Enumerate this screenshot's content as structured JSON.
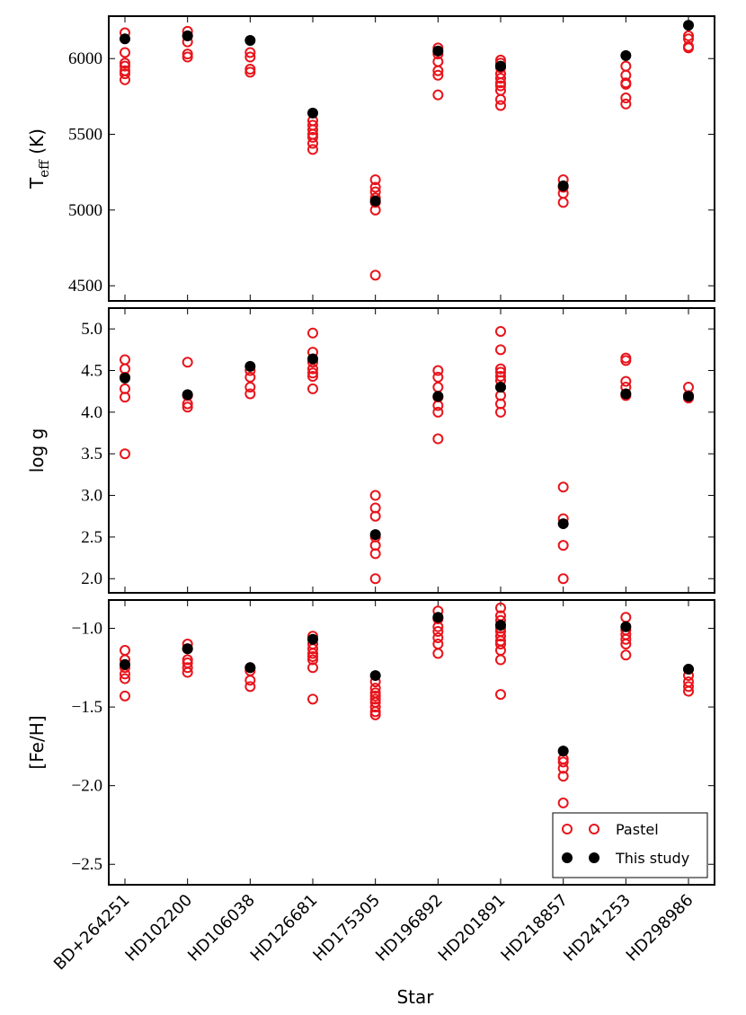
{
  "chart_data": {
    "type": "scatter",
    "categories": [
      "BD+264251",
      "HD102200",
      "HD106038",
      "HD126681",
      "HD175305",
      "HD196892",
      "HD201891",
      "HD218857",
      "HD241253",
      "HD298986"
    ],
    "xlabel": "Star",
    "legend": {
      "position": "bottom-right",
      "entries": [
        {
          "name": "Pastel",
          "marker": "open-circle",
          "color": "#e8141b"
        },
        {
          "name": "This study",
          "marker": "filled-circle",
          "color": "#000000"
        }
      ]
    },
    "panels": [
      {
        "id": "teff",
        "ylabel_main": "T",
        "ylabel_sub": "eff",
        "ylabel_unit": " (K)",
        "ylim": [
          4400,
          6280
        ],
        "yticks": [
          4500,
          5000,
          5500,
          6000
        ],
        "ytick_labels": [
          "4500",
          "5000",
          "5500",
          "6000"
        ],
        "series": [
          {
            "name": "Pastel",
            "points": [
              [
                0,
                6170
              ],
              [
                0,
                6040
              ],
              [
                0,
                5970
              ],
              [
                0,
                5950
              ],
              [
                0,
                5920
              ],
              [
                0,
                5900
              ],
              [
                0,
                5860
              ],
              [
                1,
                6180
              ],
              [
                1,
                6150
              ],
              [
                1,
                6110
              ],
              [
                1,
                6030
              ],
              [
                1,
                6010
              ],
              [
                2,
                6040
              ],
              [
                2,
                6010
              ],
              [
                2,
                5930
              ],
              [
                2,
                5910
              ],
              [
                3,
                5590
              ],
              [
                3,
                5560
              ],
              [
                3,
                5530
              ],
              [
                3,
                5500
              ],
              [
                3,
                5480
              ],
              [
                3,
                5440
              ],
              [
                3,
                5400
              ],
              [
                4,
                5200
              ],
              [
                4,
                5150
              ],
              [
                4,
                5120
              ],
              [
                4,
                5080
              ],
              [
                4,
                5050
              ],
              [
                4,
                5000
              ],
              [
                4,
                4570
              ],
              [
                5,
                6070
              ],
              [
                5,
                6030
              ],
              [
                5,
                5980
              ],
              [
                5,
                5920
              ],
              [
                5,
                5890
              ],
              [
                5,
                5760
              ],
              [
                6,
                5990
              ],
              [
                6,
                5970
              ],
              [
                6,
                5940
              ],
              [
                6,
                5900
              ],
              [
                6,
                5870
              ],
              [
                6,
                5840
              ],
              [
                6,
                5820
              ],
              [
                6,
                5790
              ],
              [
                6,
                5730
              ],
              [
                6,
                5690
              ],
              [
                7,
                5200
              ],
              [
                7,
                5150
              ],
              [
                7,
                5110
              ],
              [
                7,
                5050
              ],
              [
                8,
                5950
              ],
              [
                8,
                5890
              ],
              [
                8,
                5840
              ],
              [
                8,
                5830
              ],
              [
                8,
                5740
              ],
              [
                8,
                5700
              ],
              [
                9,
                6150
              ],
              [
                9,
                6130
              ],
              [
                9,
                6080
              ],
              [
                9,
                6070
              ]
            ]
          },
          {
            "name": "This study",
            "points": [
              [
                0,
                6130
              ],
              [
                1,
                6150
              ],
              [
                2,
                6120
              ],
              [
                3,
                5640
              ],
              [
                4,
                5060
              ],
              [
                5,
                6050
              ],
              [
                6,
                5950
              ],
              [
                7,
                5160
              ],
              [
                8,
                6020
              ],
              [
                9,
                6220
              ]
            ]
          }
        ]
      },
      {
        "id": "logg",
        "ylabel": "log g",
        "ylim": [
          1.83,
          5.25
        ],
        "yticks": [
          2.0,
          2.5,
          3.0,
          3.5,
          4.0,
          4.5,
          5.0
        ],
        "ytick_labels": [
          "2.0",
          "2.5",
          "3.0",
          "3.5",
          "4.0",
          "4.5",
          "5.0"
        ],
        "series": [
          {
            "name": "Pastel",
            "points": [
              [
                0,
                4.63
              ],
              [
                0,
                4.52
              ],
              [
                0,
                4.42
              ],
              [
                0,
                4.28
              ],
              [
                0,
                4.18
              ],
              [
                0,
                3.5
              ],
              [
                1,
                4.6
              ],
              [
                1,
                4.2
              ],
              [
                1,
                4.1
              ],
              [
                1,
                4.06
              ],
              [
                2,
                4.5
              ],
              [
                2,
                4.42
              ],
              [
                2,
                4.3
              ],
              [
                2,
                4.22
              ],
              [
                3,
                4.95
              ],
              [
                3,
                4.72
              ],
              [
                3,
                4.6
              ],
              [
                3,
                4.52
              ],
              [
                3,
                4.47
              ],
              [
                3,
                4.43
              ],
              [
                3,
                4.28
              ],
              [
                4,
                3.0
              ],
              [
                4,
                2.85
              ],
              [
                4,
                2.75
              ],
              [
                4,
                2.5
              ],
              [
                4,
                2.4
              ],
              [
                4,
                2.3
              ],
              [
                4,
                2.0
              ],
              [
                5,
                4.5
              ],
              [
                5,
                4.42
              ],
              [
                5,
                4.3
              ],
              [
                5,
                4.18
              ],
              [
                5,
                4.08
              ],
              [
                5,
                4.0
              ],
              [
                5,
                3.68
              ],
              [
                6,
                4.97
              ],
              [
                6,
                4.75
              ],
              [
                6,
                4.52
              ],
              [
                6,
                4.48
              ],
              [
                6,
                4.43
              ],
              [
                6,
                4.38
              ],
              [
                6,
                4.3
              ],
              [
                6,
                4.2
              ],
              [
                6,
                4.1
              ],
              [
                6,
                4.0
              ],
              [
                7,
                3.1
              ],
              [
                7,
                2.72
              ],
              [
                7,
                2.4
              ],
              [
                7,
                2.0
              ],
              [
                8,
                4.65
              ],
              [
                8,
                4.62
              ],
              [
                8,
                4.37
              ],
              [
                8,
                4.3
              ],
              [
                8,
                4.2
              ],
              [
                9,
                4.3
              ],
              [
                9,
                4.2
              ],
              [
                9,
                4.17
              ]
            ]
          },
          {
            "name": "This study",
            "points": [
              [
                0,
                4.41
              ],
              [
                1,
                4.21
              ],
              [
                2,
                4.55
              ],
              [
                3,
                4.64
              ],
              [
                4,
                2.53
              ],
              [
                5,
                4.19
              ],
              [
                6,
                4.3
              ],
              [
                7,
                2.66
              ],
              [
                8,
                4.22
              ],
              [
                9,
                4.19
              ]
            ]
          }
        ]
      },
      {
        "id": "feh",
        "ylabel": "[Fe/H]",
        "ylim": [
          -2.63,
          -0.82
        ],
        "yticks": [
          -2.5,
          -2.0,
          -1.5,
          -1.0
        ],
        "ytick_labels": [
          "−2.5",
          "−2.0",
          "−1.5",
          "−1.0"
        ],
        "series": [
          {
            "name": "Pastel",
            "points": [
              [
                0,
                -1.14
              ],
              [
                0,
                -1.2
              ],
              [
                0,
                -1.25
              ],
              [
                0,
                -1.29
              ],
              [
                0,
                -1.32
              ],
              [
                0,
                -1.43
              ],
              [
                1,
                -1.1
              ],
              [
                1,
                -1.13
              ],
              [
                1,
                -1.2
              ],
              [
                1,
                -1.22
              ],
              [
                1,
                -1.25
              ],
              [
                1,
                -1.28
              ],
              [
                2,
                -1.25
              ],
              [
                2,
                -1.27
              ],
              [
                2,
                -1.33
              ],
              [
                2,
                -1.37
              ],
              [
                3,
                -1.05
              ],
              [
                3,
                -1.1
              ],
              [
                3,
                -1.13
              ],
              [
                3,
                -1.16
              ],
              [
                3,
                -1.18
              ],
              [
                3,
                -1.2
              ],
              [
                3,
                -1.25
              ],
              [
                3,
                -1.45
              ],
              [
                4,
                -1.34
              ],
              [
                4,
                -1.38
              ],
              [
                4,
                -1.41
              ],
              [
                4,
                -1.43
              ],
              [
                4,
                -1.45
              ],
              [
                4,
                -1.47
              ],
              [
                4,
                -1.5
              ],
              [
                4,
                -1.53
              ],
              [
                4,
                -1.55
              ],
              [
                5,
                -0.89
              ],
              [
                5,
                -0.94
              ],
              [
                5,
                -0.99
              ],
              [
                5,
                -1.02
              ],
              [
                5,
                -1.06
              ],
              [
                5,
                -1.1
              ],
              [
                5,
                -1.16
              ],
              [
                6,
                -0.87
              ],
              [
                6,
                -0.92
              ],
              [
                6,
                -0.95
              ],
              [
                6,
                -1.0
              ],
              [
                6,
                -1.02
              ],
              [
                6,
                -1.05
              ],
              [
                6,
                -1.08
              ],
              [
                6,
                -1.1
              ],
              [
                6,
                -1.14
              ],
              [
                6,
                -1.2
              ],
              [
                6,
                -1.42
              ],
              [
                7,
                -1.83
              ],
              [
                7,
                -1.85
              ],
              [
                7,
                -1.89
              ],
              [
                7,
                -1.94
              ],
              [
                7,
                -2.11
              ],
              [
                8,
                -0.93
              ],
              [
                8,
                -1.01
              ],
              [
                8,
                -1.04
              ],
              [
                8,
                -1.07
              ],
              [
                8,
                -1.1
              ],
              [
                8,
                -1.17
              ],
              [
                9,
                -1.26
              ],
              [
                9,
                -1.3
              ],
              [
                9,
                -1.34
              ],
              [
                9,
                -1.37
              ],
              [
                9,
                -1.4
              ]
            ]
          },
          {
            "name": "This study",
            "points": [
              [
                0,
                -1.23
              ],
              [
                1,
                -1.13
              ],
              [
                2,
                -1.25
              ],
              [
                3,
                -1.07
              ],
              [
                4,
                -1.3
              ],
              [
                5,
                -0.93
              ],
              [
                6,
                -0.98
              ],
              [
                7,
                -1.78
              ],
              [
                8,
                -0.99
              ],
              [
                9,
                -1.26
              ]
            ]
          }
        ]
      }
    ]
  }
}
